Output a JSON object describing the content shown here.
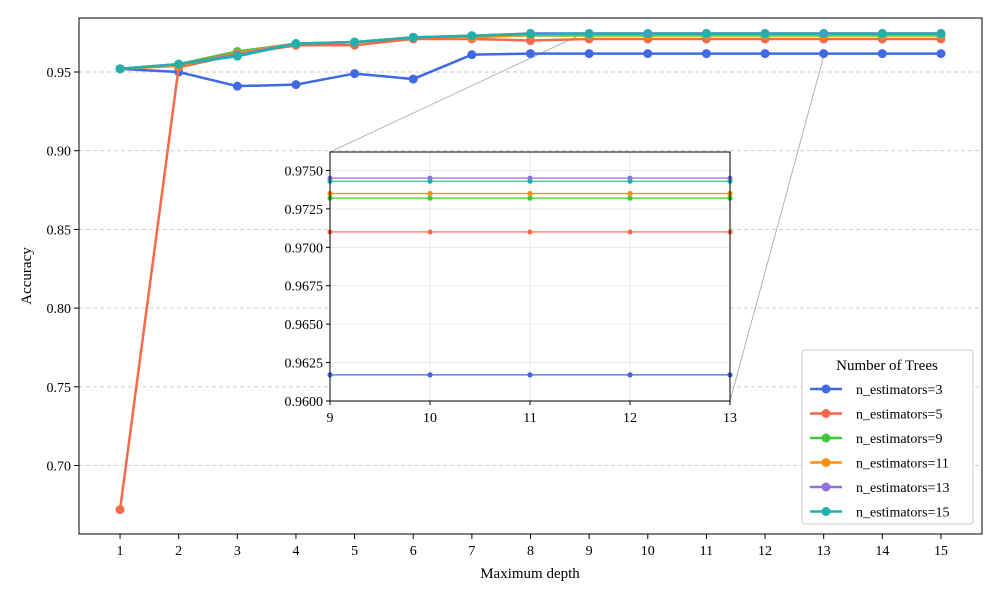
{
  "chart_data": {
    "type": "line",
    "title": "",
    "xlabel": "Maximum depth",
    "ylabel": "Accuracy",
    "x": [
      1,
      2,
      3,
      4,
      5,
      6,
      7,
      8,
      9,
      10,
      11,
      12,
      13,
      14,
      15
    ],
    "xlim": [
      0.3,
      15.7
    ],
    "ylim": [
      0.6565,
      0.9843
    ],
    "yticks": [
      0.7,
      0.75,
      0.8,
      0.85,
      0.9,
      0.95
    ],
    "ytick_labels": [
      "0.70",
      "0.75",
      "0.80",
      "0.85",
      "0.90",
      "0.95"
    ],
    "grid": "horizontal dashed",
    "legend": {
      "title": "Number of Trees",
      "position": "lower-right"
    },
    "series": [
      {
        "name": "n_estimators=3",
        "color": "#4169e1",
        "values": [
          0.952,
          0.95,
          0.941,
          0.942,
          0.949,
          0.9455,
          0.961,
          0.9617,
          0.9617,
          0.9617,
          0.9617,
          0.9617,
          0.9617,
          0.9617,
          0.9617
        ]
      },
      {
        "name": "n_estimators=5",
        "color": "#f4694a",
        "values": [
          0.672,
          0.953,
          0.961,
          0.967,
          0.967,
          0.971,
          0.971,
          0.97,
          0.971,
          0.971,
          0.971,
          0.971,
          0.971,
          0.971,
          0.971
        ]
      },
      {
        "name": "n_estimators=9",
        "color": "#3cc83c",
        "values": [
          0.952,
          0.955,
          0.963,
          0.968,
          0.969,
          0.972,
          0.973,
          0.9732,
          0.9732,
          0.9732,
          0.9732,
          0.9732,
          0.9732,
          0.9732,
          0.9732
        ]
      },
      {
        "name": "n_estimators=11",
        "color": "#f7900f",
        "values": [
          0.952,
          0.954,
          0.962,
          0.968,
          0.969,
          0.972,
          0.972,
          0.9735,
          0.9735,
          0.9735,
          0.9735,
          0.9735,
          0.9735,
          0.9735,
          0.9735
        ]
      },
      {
        "name": "n_estimators=13",
        "color": "#9370db",
        "values": [
          0.952,
          0.955,
          0.961,
          0.968,
          0.969,
          0.972,
          0.973,
          0.9745,
          0.9745,
          0.9745,
          0.9745,
          0.9745,
          0.9745,
          0.9745,
          0.9745
        ]
      },
      {
        "name": "n_estimators=15",
        "color": "#20b2aa",
        "values": [
          0.952,
          0.955,
          0.96,
          0.968,
          0.969,
          0.972,
          0.973,
          0.9743,
          0.9743,
          0.9743,
          0.9743,
          0.9743,
          0.9743,
          0.9743,
          0.9743
        ]
      }
    ],
    "inset": {
      "type": "line",
      "xlim": [
        9,
        13
      ],
      "ylim": [
        0.96,
        0.9762
      ],
      "xticks": [
        9,
        10,
        11,
        12,
        13
      ],
      "yticks": [
        0.96,
        0.9625,
        0.965,
        0.9675,
        0.97,
        0.9725,
        0.975
      ],
      "ytick_labels": [
        "0.9600",
        "0.9625",
        "0.9650",
        "0.9675",
        "0.9700",
        "0.9725",
        "0.9750"
      ],
      "grid": "both"
    }
  }
}
